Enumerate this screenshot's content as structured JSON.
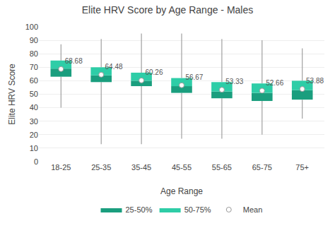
{
  "chart_data": {
    "type": "box",
    "title": "Elite HRV Score by Age Range - Males",
    "xlabel": "Age Range",
    "ylabel": "Elite HRV Score",
    "categories": [
      "18-25",
      "25-35",
      "35-45",
      "45-55",
      "55-65",
      "65-75",
      "75+"
    ],
    "whisker_low": [
      40,
      13,
      13,
      17,
      17,
      20,
      32
    ],
    "q25": [
      63,
      59,
      56,
      51,
      47,
      45,
      46
    ],
    "q50": [
      69,
      64,
      60,
      56,
      52,
      51,
      53
    ],
    "q75": [
      75,
      70,
      66,
      62,
      59,
      58,
      60
    ],
    "whisker_high": [
      87,
      91,
      95,
      95,
      91,
      90,
      84
    ],
    "means": [
      68.68,
      64.48,
      60.26,
      56.67,
      53.33,
      52.66,
      53.88
    ],
    "series": [
      {
        "name": "25-50%",
        "color": "#1a9e7e"
      },
      {
        "name": "50-75%",
        "color": "#2ecda7"
      },
      {
        "name": "Mean",
        "color": "white"
      }
    ],
    "ylim": [
      0,
      100
    ],
    "yticks": [
      0,
      10,
      20,
      30,
      40,
      50,
      60,
      70,
      80,
      90,
      100
    ],
    "grid": true,
    "legend": "bottom",
    "data_labels": true
  }
}
